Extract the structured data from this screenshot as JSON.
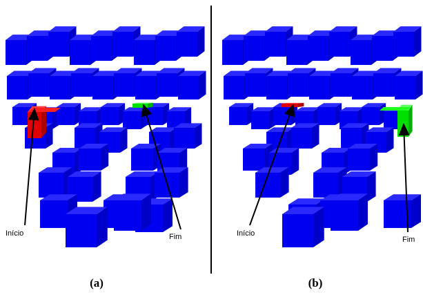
{
  "panels": [
    {
      "caption": "(a)",
      "start_label": "Início",
      "end_label": "Fim"
    },
    {
      "caption": "(b)",
      "start_label": "Início",
      "end_label": "Fim"
    }
  ]
}
